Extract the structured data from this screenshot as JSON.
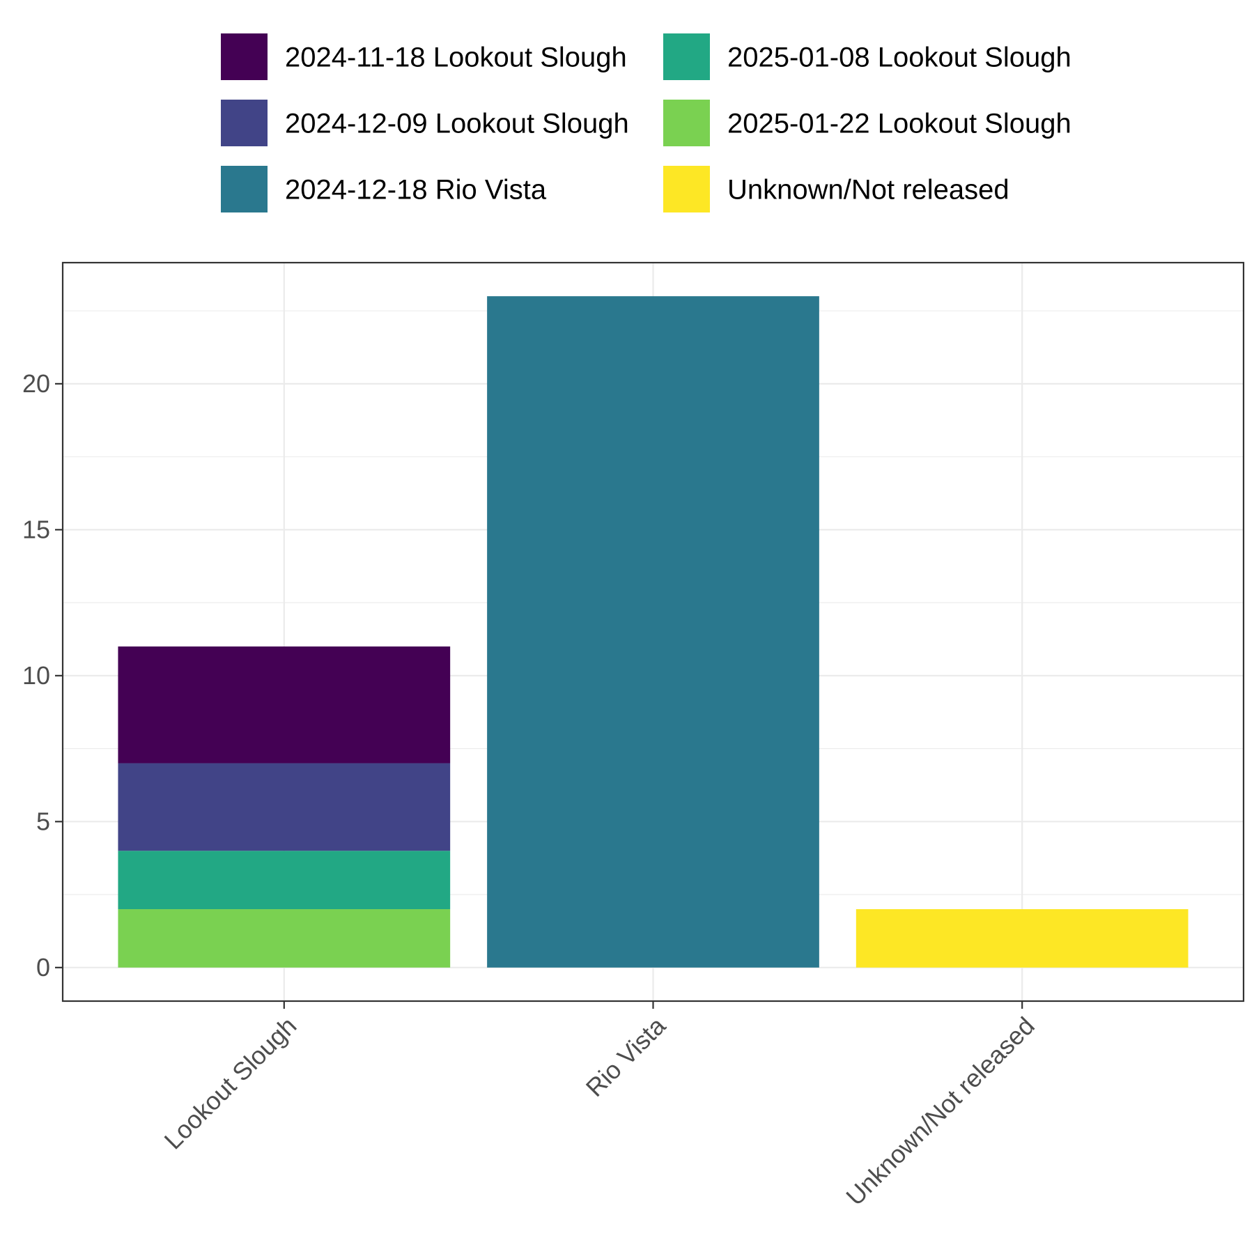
{
  "chart_data": {
    "type": "bar",
    "stacked": true,
    "categories": [
      "Lookout Slough",
      "Rio Vista",
      "Unknown/Not released"
    ],
    "series": [
      {
        "name": "2024-11-18 Lookout Slough",
        "color": "#440154",
        "values": [
          4,
          0,
          0
        ]
      },
      {
        "name": "2024-12-09 Lookout Slough",
        "color": "#414487",
        "values": [
          3,
          0,
          0
        ]
      },
      {
        "name": "2024-12-18 Rio Vista",
        "color": "#2A788E",
        "values": [
          0,
          23,
          0
        ]
      },
      {
        "name": "2025-01-08 Lookout Slough",
        "color": "#22A884",
        "values": [
          2,
          0,
          0
        ]
      },
      {
        "name": "2025-01-22 Lookout Slough",
        "color": "#7AD151",
        "values": [
          2,
          0,
          0
        ]
      },
      {
        "name": "Unknown/Not released",
        "color": "#FDE725",
        "values": [
          0,
          0,
          2
        ]
      }
    ],
    "stack_order_bottom_to_top": [
      4,
      3,
      2,
      1,
      0,
      5
    ],
    "y_ticks": [
      "0",
      "5",
      "10",
      "15",
      "20"
    ],
    "ylim": [
      -1.15,
      24.15
    ],
    "title": "",
    "xlabel": "",
    "ylabel": "",
    "grid": true,
    "legend_position": "top"
  }
}
